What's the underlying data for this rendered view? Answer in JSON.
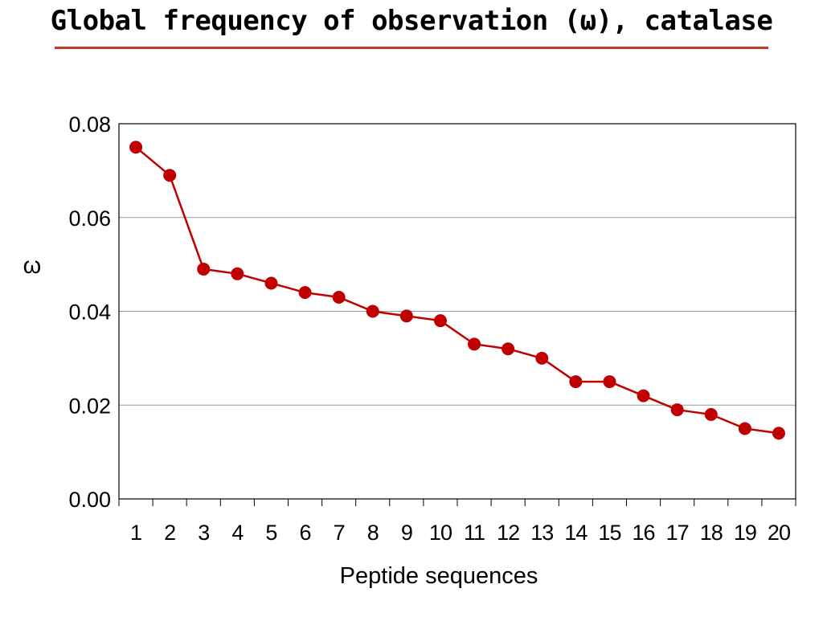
{
  "slide": {
    "title": "Global frequency of observation (ω), catalase"
  },
  "chart_data": {
    "type": "line",
    "title": "",
    "xlabel": "Peptide sequences",
    "ylabel": "ω",
    "categories": [
      "1",
      "2",
      "3",
      "4",
      "5",
      "6",
      "7",
      "8",
      "9",
      "10",
      "11",
      "12",
      "13",
      "14",
      "15",
      "16",
      "17",
      "18",
      "19",
      "20"
    ],
    "series": [
      {
        "values": [
          0.075,
          0.069,
          0.049,
          0.048,
          0.046,
          0.044,
          0.043,
          0.04,
          0.039,
          0.038,
          0.033,
          0.032,
          0.03,
          0.025,
          0.025,
          0.022,
          0.019,
          0.018,
          0.015,
          0.014
        ],
        "color": "#c00000"
      }
    ],
    "ylim": [
      0,
      0.08
    ],
    "yticks": [
      "0.00",
      "0.02",
      "0.04",
      "0.06",
      "0.08"
    ],
    "grid": true,
    "legend": "none"
  }
}
